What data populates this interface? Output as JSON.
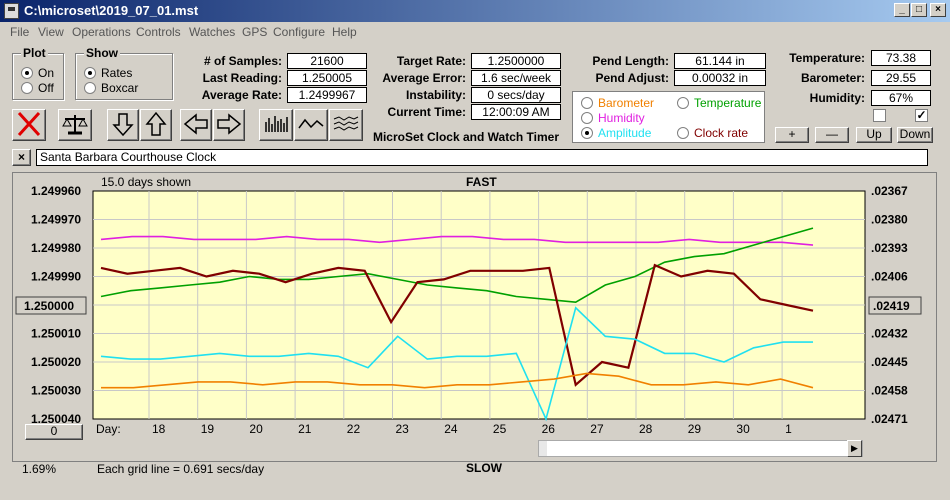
{
  "window": {
    "title": "C:\\microset\\2019_07_01.mst"
  },
  "menu": [
    "File",
    "View",
    "Operations",
    "Controls",
    "Watches",
    "GPS",
    "Configure",
    "Help"
  ],
  "plot_group": {
    "title": "Plot",
    "on": "On",
    "off": "Off",
    "selected": "On"
  },
  "show_group": {
    "title": "Show",
    "rates": "Rates",
    "boxcar": "Boxcar",
    "selected": "Rates"
  },
  "stats": {
    "samples_label": "# of Samples:",
    "samples": "21600",
    "last_label": "Last Reading:",
    "last": "1.250005",
    "avg_label": "Average Rate:",
    "avg": "1.2499967"
  },
  "rates": {
    "target_label": "Target Rate:",
    "target": "1.2500000",
    "error_label": "Average Error:",
    "error": "1.6 sec/week",
    "instab_label": "Instability:",
    "instab": "0 secs/day",
    "time_label": "Current Time:",
    "time": "12:00:09 AM"
  },
  "heading": "MicroSet Clock and Watch Timer",
  "pend": {
    "length_label": "Pend Length:",
    "length": "61.144 in",
    "adjust_label": "Pend Adjust:",
    "adjust": "0.00032 in"
  },
  "series_select": {
    "barometer": "Barometer",
    "temperature": "Temperature",
    "humidity": "Humidity",
    "amplitude": "Amplitude",
    "clock_rate": "Clock rate",
    "selected": "Amplitude"
  },
  "env": {
    "temp_label": "Temperature:",
    "temp": "73.38",
    "baro_label": "Barometer:",
    "baro": "29.55",
    "hum_label": "Humidity:",
    "hum": "67%"
  },
  "adjust_buttons": {
    "plus": "+",
    "minus": "—",
    "up": "Up",
    "down": "Down"
  },
  "watch_name": "Santa Barbara Courthouse Clock",
  "chart": {
    "days_shown": "15.0 days shown",
    "top_label": "FAST",
    "bottom_label": "SLOW",
    "grid_note": "Each grid line = 0.691 secs/day",
    "percent": "1.69%",
    "day_label": "Day:",
    "center_button": "1.250000",
    "right_button": ".02419",
    "zero_button": "0"
  },
  "colors": {
    "plot_bg": "#ffffc8",
    "rate": "#800000",
    "temperature": "#00a000",
    "humidity": "#e020e0",
    "amplitude": "#20e0f0",
    "barometer": "#f08000"
  },
  "chart_data": {
    "type": "line",
    "x_ticks": [
      "18",
      "19",
      "20",
      "21",
      "22",
      "23",
      "24",
      "25",
      "26",
      "27",
      "28",
      "29",
      "30",
      "1"
    ],
    "y_left_ticks": [
      "1.249960",
      "1.249970",
      "1.249980",
      "1.249990",
      "1.250000",
      "1.250010",
      "1.250020",
      "1.250030",
      "1.250040"
    ],
    "y_right_ticks": [
      ".02367",
      ".02380",
      ".02393",
      ".02406",
      ".02419",
      ".02432",
      ".02445",
      ".02458",
      ".02471"
    ],
    "ylim_left": [
      1.24996,
      1.25004
    ],
    "ylim_right": [
      0.02367,
      0.02471
    ],
    "x_range": [
      17.2,
      2.2
    ],
    "series": [
      {
        "key": "humidity",
        "values": [
          1.249977,
          1.249976,
          1.249976,
          1.249977,
          1.249977,
          1.249977,
          1.249976,
          1.249977,
          1.249977,
          1.249978,
          1.249977,
          1.249976,
          1.249976,
          1.249977,
          1.249977,
          1.249978,
          1.249978,
          1.249978,
          1.249978,
          1.249977,
          1.249978,
          1.249978,
          1.249978,
          1.249979
        ]
      },
      {
        "key": "temperature",
        "values": [
          1.249997,
          1.249995,
          1.249994,
          1.249993,
          1.249992,
          1.24999,
          1.249991,
          1.249991,
          1.24999,
          1.249989,
          1.249991,
          1.249993,
          1.249994,
          1.249995,
          1.249997,
          1.249998,
          1.249999,
          1.249993,
          1.24999,
          1.249985,
          1.249983,
          1.249982,
          1.249979,
          1.249976,
          1.249973
        ]
      },
      {
        "key": "rate",
        "values": [
          1.249987,
          1.249989,
          1.249988,
          1.249987,
          1.24999,
          1.249988,
          1.249989,
          1.249992,
          1.249989,
          1.249987,
          1.249988,
          1.250006,
          1.249992,
          1.249991,
          1.249988,
          1.249988,
          1.249988,
          1.249987,
          1.250028,
          1.25002,
          1.250022,
          1.249986,
          1.24999,
          1.249988,
          1.249989,
          1.249998,
          1.25,
          1.250002
        ]
      },
      {
        "key": "amplitude",
        "values": [
          1.250018,
          1.250019,
          1.250019,
          1.250018,
          1.250017,
          1.250018,
          1.250018,
          1.250017,
          1.250018,
          1.250022,
          1.250011,
          1.250019,
          1.250018,
          1.250018,
          1.250017,
          1.25004,
          1.250001,
          1.250011,
          1.250012,
          1.250017,
          1.250017,
          1.25002,
          1.250015,
          1.250013,
          1.250013
        ]
      },
      {
        "key": "barometer",
        "values": [
          1.250029,
          1.250029,
          1.250028,
          1.250027,
          1.250027,
          1.250028,
          1.250027,
          1.250027,
          1.250028,
          1.250028,
          1.250029,
          1.250028,
          1.250028,
          1.250027,
          1.250026,
          1.250024,
          1.250025,
          1.250028,
          1.250028,
          1.250027,
          1.250028,
          1.250026,
          1.250029
        ]
      }
    ]
  }
}
